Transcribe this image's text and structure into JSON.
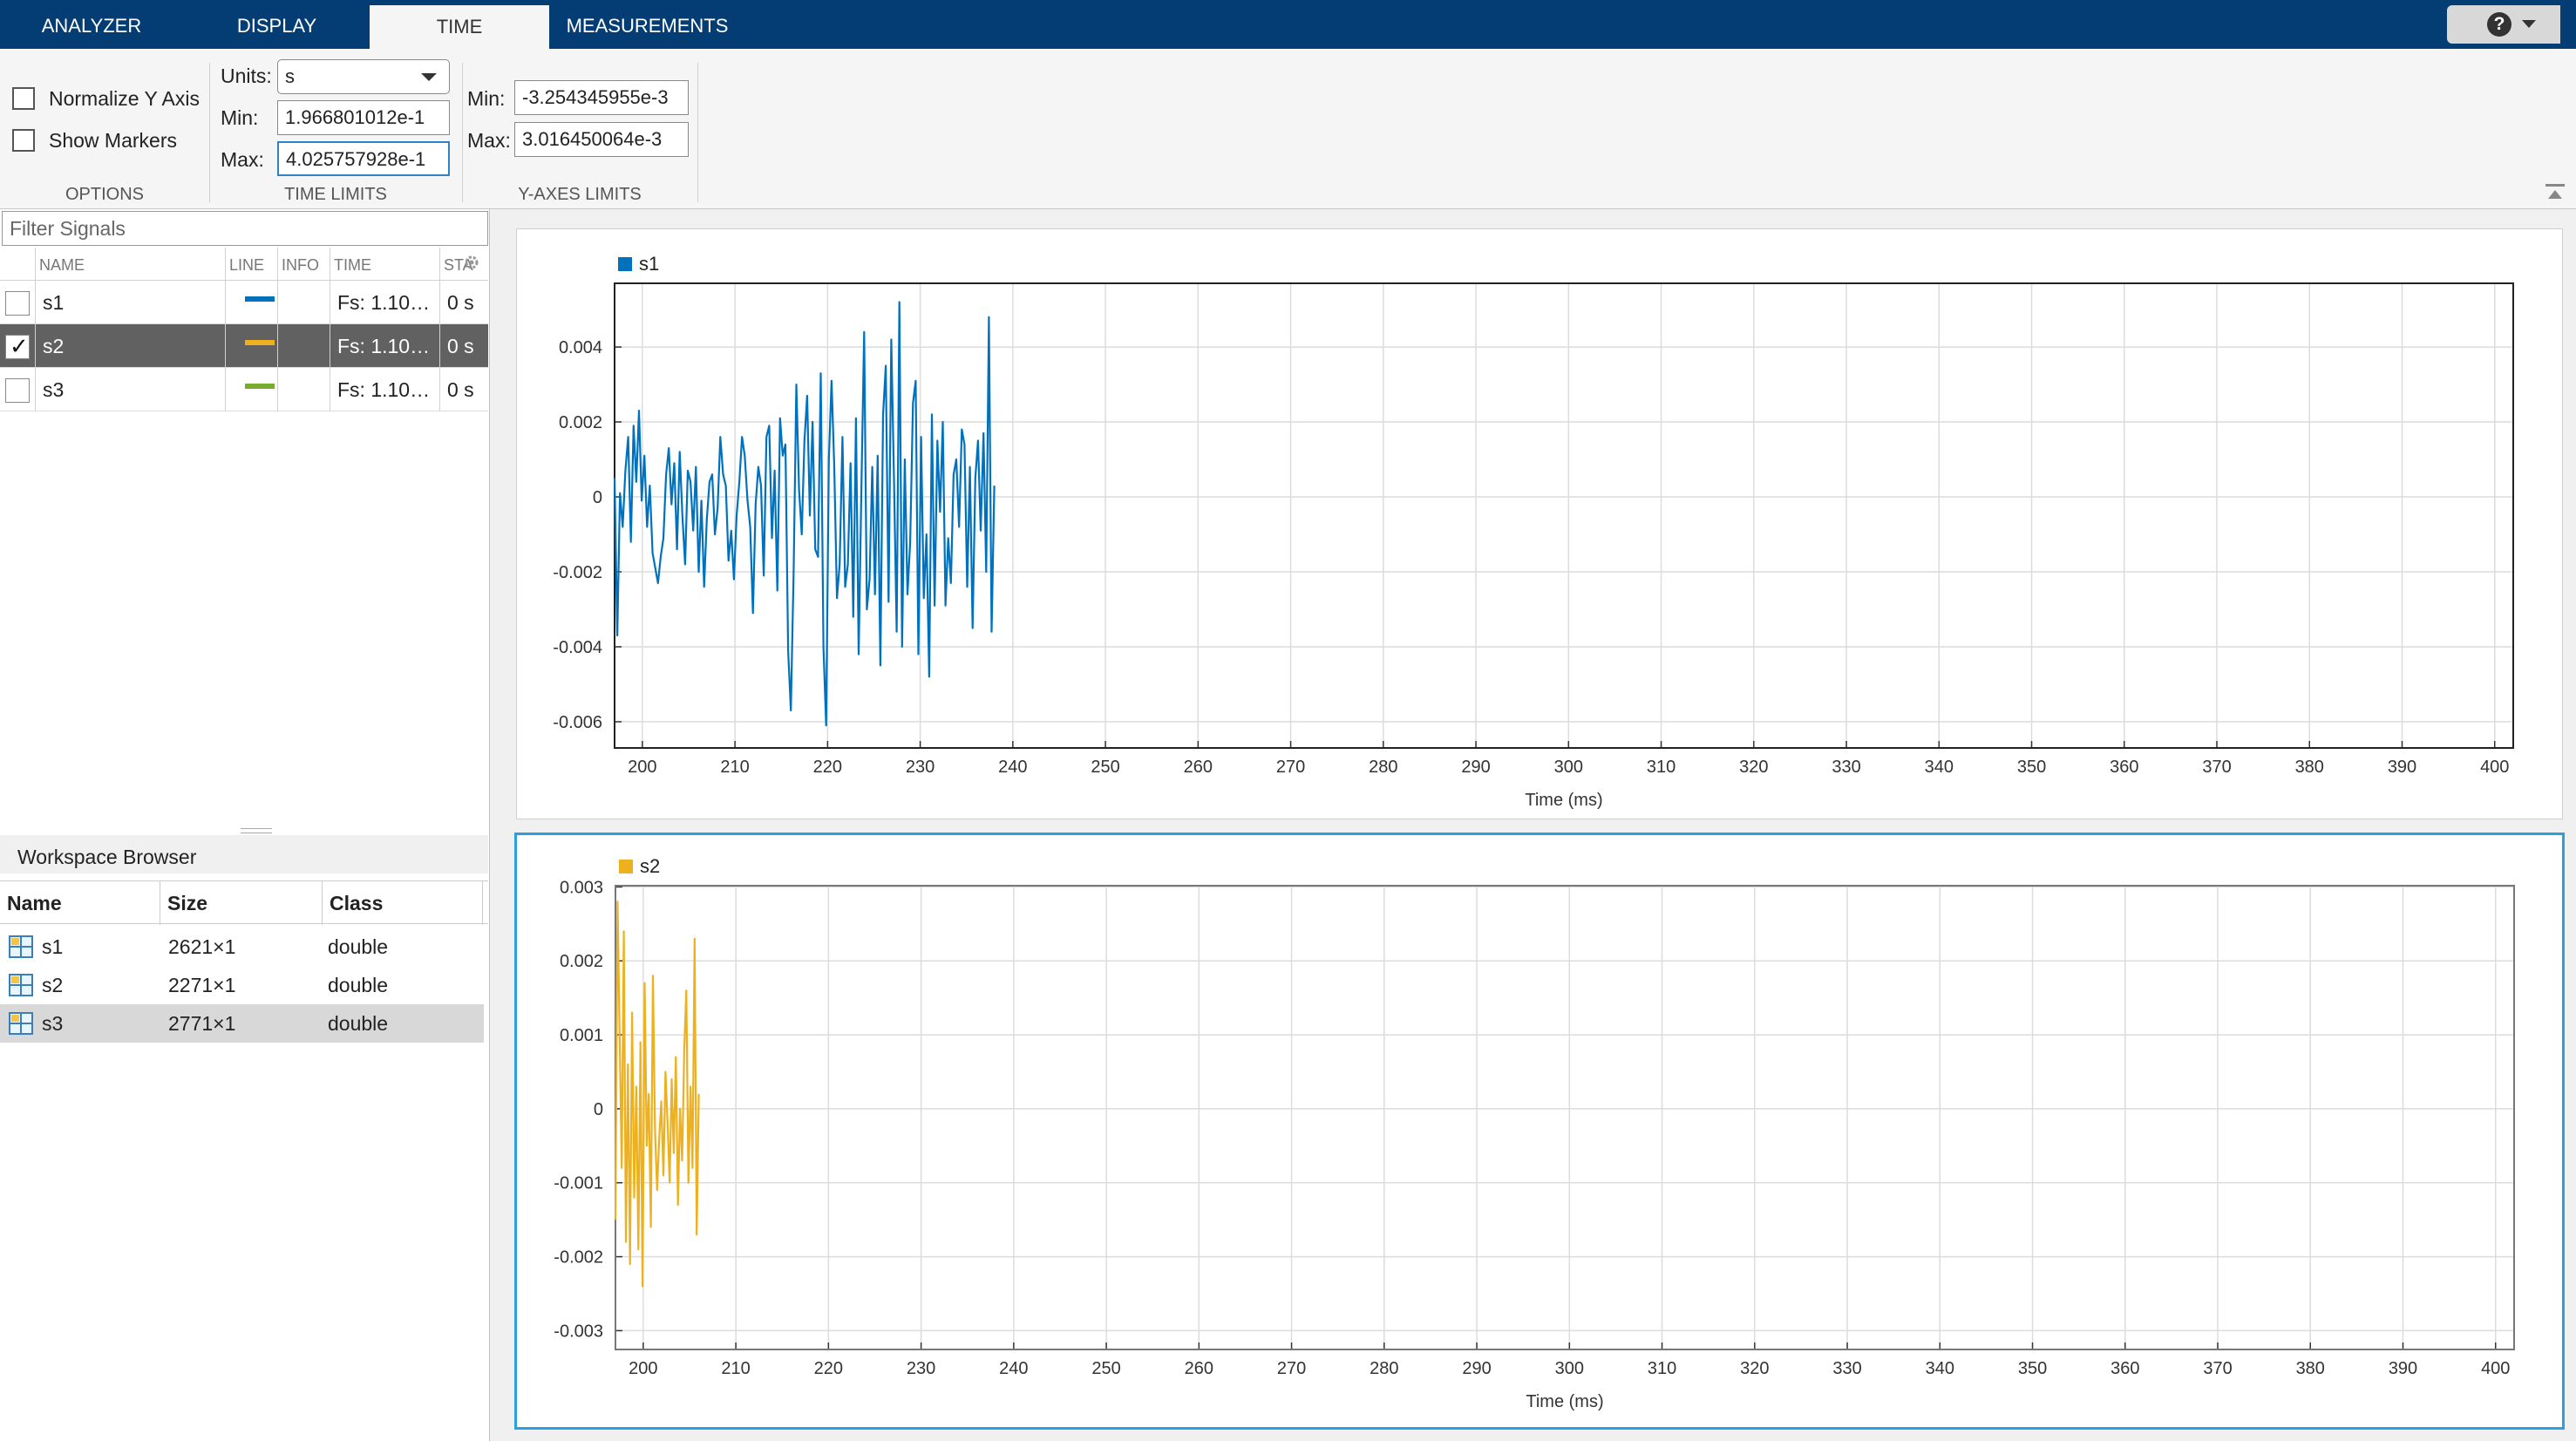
{
  "tabs": [
    {
      "label": "ANALYZER",
      "active": false
    },
    {
      "label": "DISPLAY",
      "active": false
    },
    {
      "label": "TIME",
      "active": true
    },
    {
      "label": "MEASUREMENTS",
      "active": false
    }
  ],
  "help": {
    "glyph": "?"
  },
  "options": {
    "section_label": "OPTIONS",
    "normalize_y_axis": {
      "label": "Normalize Y Axis",
      "checked": false
    },
    "show_markers": {
      "label": "Show Markers",
      "checked": false
    }
  },
  "time_limits": {
    "section_label": "TIME LIMITS",
    "units_label": "Units:",
    "units_value": "s",
    "min_label": "Min:",
    "min_value": "1.966801012e-1",
    "max_label": "Max:",
    "max_value": "4.025757928e-1"
  },
  "y_axes_limits": {
    "section_label": "Y-AXES LIMITS",
    "min_label": "Min:",
    "min_value": "-3.254345955e-3",
    "max_label": "Max:",
    "max_value": "3.016450064e-3"
  },
  "signals": {
    "filter_placeholder": "Filter Signals",
    "columns": {
      "name": "NAME",
      "line": "LINE",
      "info": "INFO",
      "time": "TIME",
      "start": "STA"
    },
    "rows": [
      {
        "name": "s1",
        "line_color": "#0072bd",
        "time": "Fs: 1.10…",
        "start": "0 s",
        "checked": false,
        "selected": false
      },
      {
        "name": "s2",
        "line_color": "#edb120",
        "time": "Fs: 1.10…",
        "start": "0 s",
        "checked": true,
        "selected": true
      },
      {
        "name": "s3",
        "line_color": "#77ac30",
        "time": "Fs: 1.10…",
        "start": "0 s",
        "checked": false,
        "selected": false
      }
    ]
  },
  "workspace": {
    "title": "Workspace Browser",
    "columns": {
      "name": "Name",
      "size": "Size",
      "class": "Class"
    },
    "rows": [
      {
        "name": "s1",
        "size": "2621×1",
        "class": "double",
        "selected": false
      },
      {
        "name": "s2",
        "size": "2271×1",
        "class": "double",
        "selected": false
      },
      {
        "name": "s3",
        "size": "2771×1",
        "class": "double",
        "selected": true
      }
    ]
  },
  "chart_data": [
    {
      "type": "line",
      "legend": [
        "s1"
      ],
      "color": "#0072bd",
      "xlabel": "Time (ms)",
      "xlim": [
        197,
        402
      ],
      "ylim": [
        -0.0067,
        0.0057
      ],
      "xticks": [
        200,
        210,
        220,
        230,
        240,
        250,
        260,
        270,
        280,
        290,
        300,
        310,
        320,
        330,
        340,
        350,
        360,
        370,
        380,
        390,
        400
      ],
      "yticks": [
        -0.006,
        -0.004,
        -0.002,
        0,
        0.002,
        0.004
      ],
      "ytick_labels": [
        "-0.006",
        "-0.004",
        "-0.002",
        "0",
        "0.002",
        "0.004"
      ],
      "grid": true,
      "legend_position": "top-left",
      "series": [
        {
          "name": "s1",
          "x_start": 197,
          "x_end": 238,
          "values": [
            0.0005,
            -0.0037,
            0.0001,
            -0.0008,
            0.0007,
            0.0016,
            -0.0012,
            0.0019,
            0.0004,
            0.0023,
            -0.0001,
            0.0011,
            -0.0008,
            0.0003,
            -0.0015,
            -0.0019,
            -0.0023,
            -0.0016,
            -0.0011,
            0.0006,
            0.0013,
            -0.0002,
            0.0009,
            -0.0014,
            0.0012,
            -0.0005,
            -0.0018,
            0.0007,
            0.0004,
            -0.0009,
            0.0008,
            -0.002,
            -0.0001,
            -0.0024,
            -0.0006,
            0.0004,
            0.0006,
            -0.001,
            -0.0003,
            0.0016,
            0.0006,
            0.0003,
            -0.0017,
            -0.0009,
            -0.0022,
            -0.0005,
            0.0004,
            0.0016,
            0.0011,
            -0.0001,
            -0.0008,
            -0.0031,
            -0.0002,
            0.0008,
            0.0003,
            -0.0021,
            0.0016,
            0.0019,
            -0.0011,
            0.0007,
            -0.0025,
            0.0021,
            0.0011,
            0.0014,
            -0.0041,
            -0.0057,
            -0.002,
            0.003,
            0.0002,
            -0.001,
            0.0015,
            0.0027,
            -0.0005,
            0.002,
            -0.0014,
            -0.0016,
            0.0033,
            -0.004,
            -0.0061,
            0.001,
            0.0031,
            0.0008,
            -0.0027,
            -0.0018,
            0.0016,
            -0.0024,
            -0.0018,
            0.0009,
            -0.0032,
            0.0021,
            -0.0042,
            0.0002,
            0.0044,
            -0.003,
            -0.0022,
            0.0008,
            -0.0026,
            0.0011,
            -0.0045,
            0.0022,
            0.0035,
            -0.0028,
            0.0042,
            0.0005,
            -0.0036,
            0.0052,
            -0.004,
            0.001,
            -0.0026,
            -0.0012,
            0.0025,
            0.0031,
            -0.0042,
            0.0016,
            -0.0027,
            -0.001,
            -0.0048,
            0.0022,
            -0.0029,
            0.0015,
            -0.0004,
            0.002,
            -0.0029,
            -0.0011,
            -0.0023,
            0.0006,
            0.001,
            -0.0008,
            0.0018,
            0.0014,
            -0.0024,
            0.0008,
            -0.0035,
            0.0005,
            0.0015,
            -0.0009,
            0.0017,
            -0.002,
            0.0048,
            -0.0036,
            0.0003
          ]
        }
      ]
    },
    {
      "type": "line",
      "legend": [
        "s2"
      ],
      "color": "#edb120",
      "xlabel": "Time (ms)",
      "xlim": [
        197,
        402
      ],
      "ylim": [
        -0.003254345955,
        0.003016450064
      ],
      "xticks": [
        200,
        210,
        220,
        230,
        240,
        250,
        260,
        270,
        280,
        290,
        300,
        310,
        320,
        330,
        340,
        350,
        360,
        370,
        380,
        390,
        400
      ],
      "yticks": [
        -0.003,
        -0.002,
        -0.001,
        0,
        0.001,
        0.002,
        0.003
      ],
      "ytick_labels": [
        "-0.003",
        "-0.002",
        "-0.001",
        "0",
        "0.001",
        "0.002",
        "0.003"
      ],
      "grid": true,
      "legend_position": "top-left",
      "series": [
        {
          "name": "s2",
          "x_start": 197,
          "x_end": 206,
          "values": [
            -0.0015,
            0.0028,
            0.001,
            -0.0008,
            0.0024,
            -0.0018,
            0.0006,
            -0.0021,
            0.0013,
            -0.0012,
            0.0003,
            -0.0019,
            0.0009,
            -0.0024,
            0.0017,
            -0.0005,
            0.0002,
            -0.0016,
            0.0018,
            -0.0003,
            -0.0011,
            -0.0004,
            0.0001,
            -0.0009,
            0.0005,
            -0.0002,
            -0.001,
            0.0004,
            -0.0006,
            0.0007,
            -0.0013,
            0.0,
            -0.0007,
            0.0008,
            0.0016,
            -0.001,
            0.0003,
            -0.0008,
            0.0023,
            -0.0017,
            0.0002
          ]
        }
      ]
    }
  ]
}
